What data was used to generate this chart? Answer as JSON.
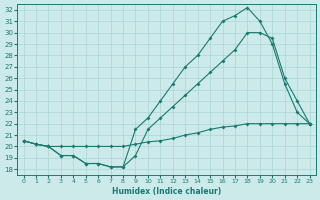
{
  "xlabel": "Humidex (Indice chaleur)",
  "bg_color": "#cceaea",
  "line_color": "#1a7a6e",
  "grid_color": "#aad4d4",
  "xlim": [
    -0.5,
    23.5
  ],
  "ylim": [
    17.5,
    32.5
  ],
  "xticks": [
    0,
    1,
    2,
    3,
    4,
    5,
    6,
    7,
    8,
    9,
    10,
    11,
    12,
    13,
    14,
    15,
    16,
    17,
    18,
    19,
    20,
    21,
    22,
    23
  ],
  "yticks": [
    18,
    19,
    20,
    21,
    22,
    23,
    24,
    25,
    26,
    27,
    28,
    29,
    30,
    31,
    32
  ],
  "line1_x": [
    0,
    1,
    2,
    3,
    4,
    5,
    6,
    7,
    8,
    9,
    10,
    11,
    12,
    13,
    14,
    15,
    16,
    17,
    18,
    19,
    20,
    21,
    22,
    23
  ],
  "line1_y": [
    20.5,
    20.2,
    20.0,
    20.0,
    20.0,
    20.0,
    20.0,
    20.0,
    20.0,
    20.2,
    20.4,
    20.5,
    20.7,
    21.0,
    21.2,
    21.5,
    21.7,
    21.8,
    22.0,
    22.0,
    22.0,
    22.0,
    22.0,
    22.0
  ],
  "line2_x": [
    0,
    1,
    2,
    3,
    4,
    5,
    6,
    7,
    8,
    9,
    10,
    11,
    12,
    13,
    14,
    15,
    16,
    17,
    18,
    19,
    20,
    21,
    22,
    23
  ],
  "line2_y": [
    20.5,
    20.2,
    20.0,
    19.2,
    19.2,
    18.5,
    18.5,
    18.2,
    18.2,
    19.2,
    21.5,
    22.5,
    23.5,
    24.5,
    25.5,
    26.5,
    27.5,
    28.5,
    30.0,
    30.0,
    29.5,
    26.0,
    24.0,
    22.0
  ],
  "line3_x": [
    0,
    1,
    2,
    3,
    4,
    5,
    6,
    7,
    8,
    9,
    10,
    11,
    12,
    13,
    14,
    15,
    16,
    17,
    18,
    19,
    20,
    21,
    22,
    23
  ],
  "line3_y": [
    20.5,
    20.2,
    20.0,
    19.2,
    19.2,
    18.5,
    18.5,
    18.2,
    18.2,
    21.5,
    22.5,
    24.0,
    25.5,
    27.0,
    28.0,
    29.5,
    31.0,
    31.5,
    32.2,
    31.0,
    29.0,
    25.5,
    23.0,
    22.0
  ]
}
